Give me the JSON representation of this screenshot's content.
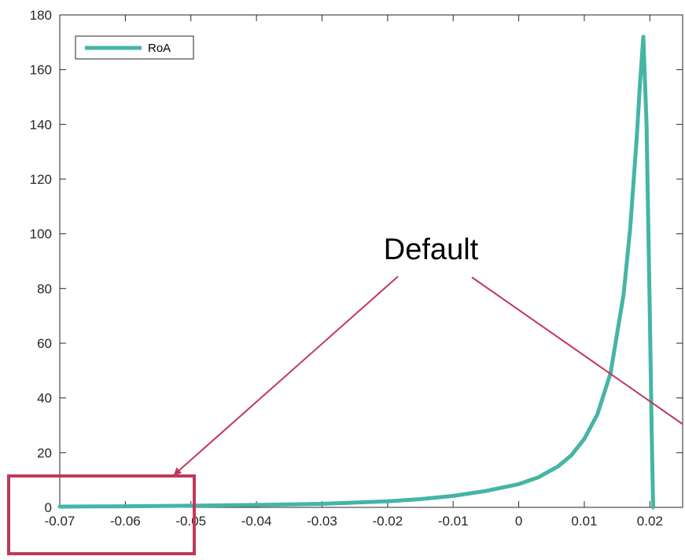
{
  "chart_data": {
    "type": "line",
    "title": "",
    "xlabel": "",
    "ylabel": "",
    "xlim": [
      -0.07,
      0.025
    ],
    "ylim": [
      0,
      180
    ],
    "xticks": [
      -0.07,
      -0.06,
      -0.05,
      -0.04,
      -0.03,
      -0.02,
      -0.01,
      0,
      0.01,
      0.02
    ],
    "xtick_labels": [
      "-0.07",
      "-0.06",
      "-0.05",
      "-0.04",
      "-0.03",
      "-0.02",
      "-0.01",
      "0",
      "0.01",
      "0.02"
    ],
    "yticks": [
      0,
      20,
      40,
      60,
      80,
      100,
      120,
      140,
      160,
      180
    ],
    "ytick_labels": [
      "0",
      "20",
      "40",
      "60",
      "80",
      "100",
      "120",
      "140",
      "160",
      "180"
    ],
    "grid": false,
    "legend_position": "top-left",
    "series": [
      {
        "name": "RoA",
        "color": "#45b5a5",
        "x": [
          -0.07,
          -0.06,
          -0.05,
          -0.04,
          -0.03,
          -0.02,
          -0.015,
          -0.01,
          -0.005,
          0,
          0.003,
          0.006,
          0.008,
          0.01,
          0.012,
          0.014,
          0.016,
          0.017,
          0.018,
          0.0185,
          0.019,
          0.0195,
          0.02,
          0.0203,
          0.0205
        ],
        "values": [
          0.3,
          0.4,
          0.6,
          0.9,
          1.3,
          2.2,
          3,
          4.2,
          6,
          8.5,
          11,
          15,
          19,
          25,
          34,
          49,
          78,
          102,
          135,
          155,
          172,
          140,
          70,
          25,
          0
        ]
      }
    ],
    "annotations": [
      {
        "text": "Default",
        "color": "#c0395a"
      }
    ]
  }
}
